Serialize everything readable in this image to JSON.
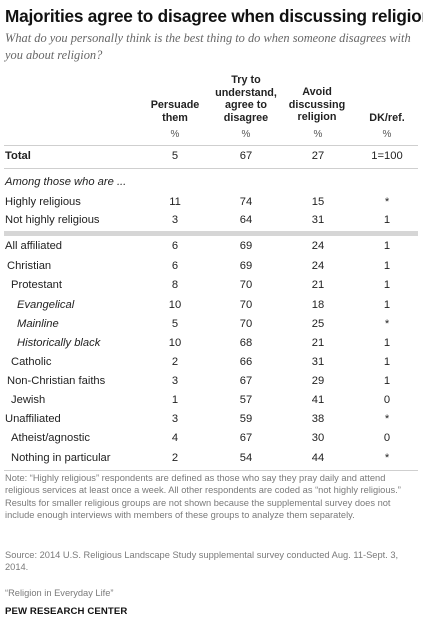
{
  "title": "Majorities agree to disagree when discussing religion",
  "subtitle": "What do you personally think is the best thing to do when someone disagrees with you about religion?",
  "columns": [
    {
      "label": "Persuade them",
      "pct": "%"
    },
    {
      "label": "Try to understand, agree to disagree",
      "pct": "%"
    },
    {
      "label": "Avoid discussing religion",
      "pct": "%"
    },
    {
      "label": "DK/ref.",
      "pct": "%"
    }
  ],
  "group_heading": "Among those who are ...",
  "notes": "Note: “Highly religious” respondents are defined as those who say they pray daily and attend religious services at least once a week. All other respondents are coded as “not highly religious.” Results for smaller religious groups are not shown because the supplemental survey does not include enough interviews with members of these groups to analyze them separately.",
  "source": "Source: 2014 U.S. Religious Landscape Study supplemental survey conducted Aug. 11-Sept. 3, 2014.",
  "report": "“Religion in Everyday Life”",
  "org": "PEW RESEARCH CENTER",
  "chart_data": {
    "type": "table",
    "title": "Majorities agree to disagree when discussing religion",
    "columns": [
      "Persuade them",
      "Try to understand, agree to disagree",
      "Avoid discussing religion",
      "DK/ref."
    ],
    "rows": [
      {
        "label": "Total",
        "values": [
          "5",
          "67",
          "27",
          "1=100"
        ]
      },
      {
        "label": "Highly religious",
        "values": [
          "11",
          "74",
          "15",
          "*"
        ]
      },
      {
        "label": "Not highly religious",
        "values": [
          "3",
          "64",
          "31",
          "1"
        ]
      },
      {
        "label": "All affiliated",
        "values": [
          "6",
          "69",
          "24",
          "1"
        ]
      },
      {
        "label": "Christian",
        "values": [
          "6",
          "69",
          "24",
          "1"
        ]
      },
      {
        "label": "Protestant",
        "values": [
          "8",
          "70",
          "21",
          "1"
        ]
      },
      {
        "label": "Evangelical",
        "values": [
          "10",
          "70",
          "18",
          "1"
        ]
      },
      {
        "label": "Mainline",
        "values": [
          "5",
          "70",
          "25",
          "*"
        ]
      },
      {
        "label": "Historically black",
        "values": [
          "10",
          "68",
          "21",
          "1"
        ]
      },
      {
        "label": "Catholic",
        "values": [
          "2",
          "66",
          "31",
          "1"
        ]
      },
      {
        "label": "Non-Christian faiths",
        "values": [
          "3",
          "67",
          "29",
          "1"
        ]
      },
      {
        "label": "Jewish",
        "values": [
          "1",
          "57",
          "41",
          "0"
        ]
      },
      {
        "label": "Unaffiliated",
        "values": [
          "3",
          "59",
          "38",
          "*"
        ]
      },
      {
        "label": "Atheist/agnostic",
        "values": [
          "4",
          "67",
          "30",
          "0"
        ]
      },
      {
        "label": "Nothing in particular",
        "values": [
          "2",
          "54",
          "44",
          "*"
        ]
      }
    ]
  }
}
